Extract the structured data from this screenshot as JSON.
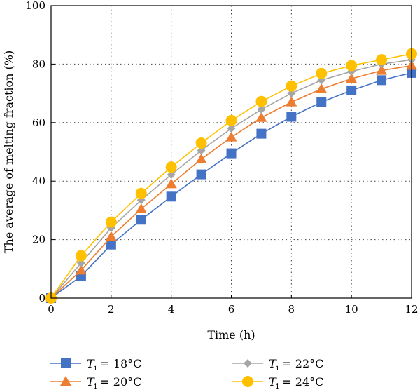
{
  "chart_data": {
    "type": "line",
    "xlabel": "Time (h)",
    "ylabel": "The average of melting fraction (%)",
    "xlim": [
      0,
      12
    ],
    "ylim": [
      0,
      100
    ],
    "xticks": [
      0,
      2,
      4,
      6,
      8,
      10,
      12
    ],
    "yticks": [
      0,
      20,
      40,
      60,
      80,
      100
    ],
    "grid": "dotted",
    "legend_position": "bottom",
    "x": [
      0,
      1,
      2,
      3,
      4,
      5,
      6,
      7,
      8,
      9,
      10,
      11,
      12
    ],
    "series": [
      {
        "name": "T_i = 18°C",
        "label_main": "T",
        "label_sub": "i",
        "label_rest": " = 18°C",
        "marker": "square",
        "color": "#4472C4",
        "values": [
          0,
          7.5,
          18.3,
          26.8,
          34.7,
          42.3,
          49.5,
          56.2,
          62.0,
          67.0,
          71.0,
          74.5,
          77.0
        ]
      },
      {
        "name": "T_i = 20°C",
        "label_main": "T",
        "label_sub": "i",
        "label_rest": " = 20°C",
        "marker": "triangle",
        "color": "#ED7D31",
        "values": [
          0,
          9.5,
          21.0,
          30.5,
          39.0,
          47.5,
          55.0,
          61.7,
          67.0,
          71.5,
          75.0,
          77.8,
          79.5
        ]
      },
      {
        "name": "T_i = 22°C",
        "label_main": "T",
        "label_sub": "i",
        "label_rest": " = 22°C",
        "marker": "diamond",
        "color": "#A5A5A5",
        "values": [
          0,
          12.0,
          24.0,
          33.5,
          42.2,
          50.5,
          58.0,
          64.5,
          70.0,
          74.5,
          77.5,
          80.0,
          81.5
        ]
      },
      {
        "name": "T_i = 24°C",
        "label_main": "T",
        "label_sub": "i",
        "label_rest": " = 24°C",
        "marker": "circle",
        "color": "#FFC000",
        "values": [
          0,
          14.5,
          26.0,
          35.8,
          44.8,
          53.0,
          60.7,
          67.2,
          72.5,
          76.8,
          79.5,
          81.5,
          83.5
        ]
      }
    ]
  }
}
